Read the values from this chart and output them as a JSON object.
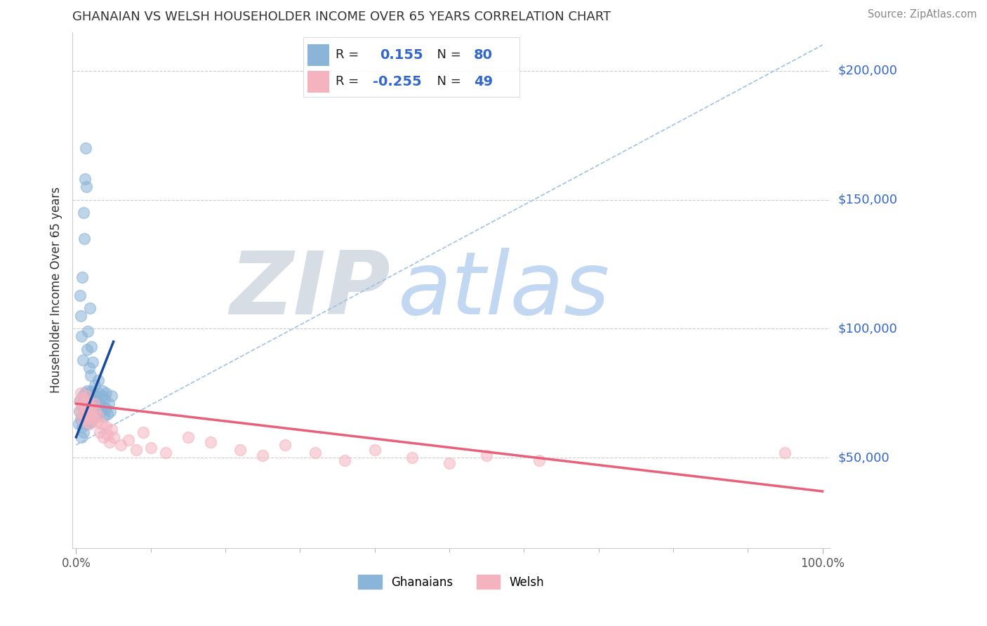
{
  "title": "GHANAIAN VS WELSH HOUSEHOLDER INCOME OVER 65 YEARS CORRELATION CHART",
  "source_text": "Source: ZipAtlas.com",
  "ylabel": "Householder Income Over 65 years",
  "xlim": [
    -0.005,
    1.01
  ],
  "ylim": [
    15000,
    215000
  ],
  "yticks": [
    50000,
    100000,
    150000,
    200000
  ],
  "title_fontsize": 13,
  "ghanaian_color": "#8ab4d8",
  "welsh_color": "#f5b3c0",
  "ghanaian_line_color": "#1a4a9a",
  "welsh_line_color": "#e8607a",
  "dashed_line_color": "#a0c0e8",
  "watermark_zip_color": "#d0d8e8",
  "watermark_atlas_color": "#b8d0f0",
  "ghanaian_R": 0.155,
  "ghanaian_N": 80,
  "welsh_R": -0.255,
  "welsh_N": 49,
  "ghana_x": [
    0.003,
    0.004,
    0.005,
    0.006,
    0.007,
    0.008,
    0.008,
    0.009,
    0.009,
    0.01,
    0.01,
    0.01,
    0.01,
    0.01,
    0.011,
    0.011,
    0.012,
    0.012,
    0.013,
    0.013,
    0.014,
    0.014,
    0.015,
    0.015,
    0.015,
    0.016,
    0.016,
    0.017,
    0.018,
    0.018,
    0.019,
    0.02,
    0.02,
    0.02,
    0.021,
    0.022,
    0.022,
    0.023,
    0.024,
    0.025,
    0.025,
    0.026,
    0.027,
    0.028,
    0.028,
    0.03,
    0.03,
    0.031,
    0.032,
    0.033,
    0.035,
    0.036,
    0.037,
    0.038,
    0.04,
    0.04,
    0.042,
    0.044,
    0.046,
    0.048,
    0.005,
    0.006,
    0.007,
    0.008,
    0.009,
    0.01,
    0.011,
    0.012,
    0.013,
    0.014,
    0.015,
    0.016,
    0.017,
    0.018,
    0.019,
    0.02,
    0.022,
    0.025,
    0.03,
    0.035
  ],
  "ghana_y": [
    63000,
    68000,
    72000,
    65000,
    58000,
    70000,
    62000,
    66000,
    74000,
    67000,
    71000,
    60000,
    73000,
    69000,
    65000,
    72000,
    68000,
    75000,
    64000,
    70000,
    66000,
    73000,
    69000,
    76000,
    63000,
    71000,
    67000,
    74000,
    65000,
    72000,
    68000,
    70000,
    64000,
    76000,
    67000,
    73000,
    69000,
    75000,
    66000,
    72000,
    68000,
    74000,
    70000,
    66000,
    73000,
    69000,
    75000,
    67000,
    71000,
    68000,
    74000,
    70000,
    66000,
    73000,
    69000,
    75000,
    67000,
    71000,
    68000,
    74000,
    113000,
    105000,
    97000,
    120000,
    88000,
    145000,
    135000,
    158000,
    170000,
    155000,
    92000,
    99000,
    85000,
    108000,
    82000,
    93000,
    87000,
    78000,
    80000,
    76000
  ],
  "welsh_x": [
    0.004,
    0.005,
    0.006,
    0.007,
    0.008,
    0.009,
    0.01,
    0.011,
    0.012,
    0.013,
    0.014,
    0.015,
    0.016,
    0.017,
    0.018,
    0.019,
    0.02,
    0.022,
    0.024,
    0.026,
    0.028,
    0.03,
    0.032,
    0.034,
    0.036,
    0.04,
    0.042,
    0.045,
    0.048,
    0.05,
    0.06,
    0.07,
    0.08,
    0.09,
    0.1,
    0.12,
    0.15,
    0.18,
    0.22,
    0.25,
    0.28,
    0.32,
    0.36,
    0.4,
    0.45,
    0.5,
    0.55,
    0.62,
    0.95
  ],
  "welsh_y": [
    72000,
    68000,
    75000,
    70000,
    65000,
    73000,
    67000,
    71000,
    64000,
    69000,
    74000,
    66000,
    72000,
    68000,
    63000,
    70000,
    67000,
    65000,
    71000,
    68000,
    64000,
    66000,
    60000,
    63000,
    58000,
    62000,
    59000,
    56000,
    61000,
    58000,
    55000,
    57000,
    53000,
    60000,
    54000,
    52000,
    58000,
    56000,
    53000,
    51000,
    55000,
    52000,
    49000,
    53000,
    50000,
    48000,
    51000,
    49000,
    52000
  ],
  "ghana_line_x": [
    0.0,
    0.05
  ],
  "ghana_line_y": [
    58000,
    95000
  ],
  "welsh_line_x": [
    0.0,
    1.0
  ],
  "welsh_line_y": [
    71000,
    37000
  ],
  "dash_line_x": [
    0.0,
    1.0
  ],
  "dash_line_y": [
    55000,
    210000
  ]
}
